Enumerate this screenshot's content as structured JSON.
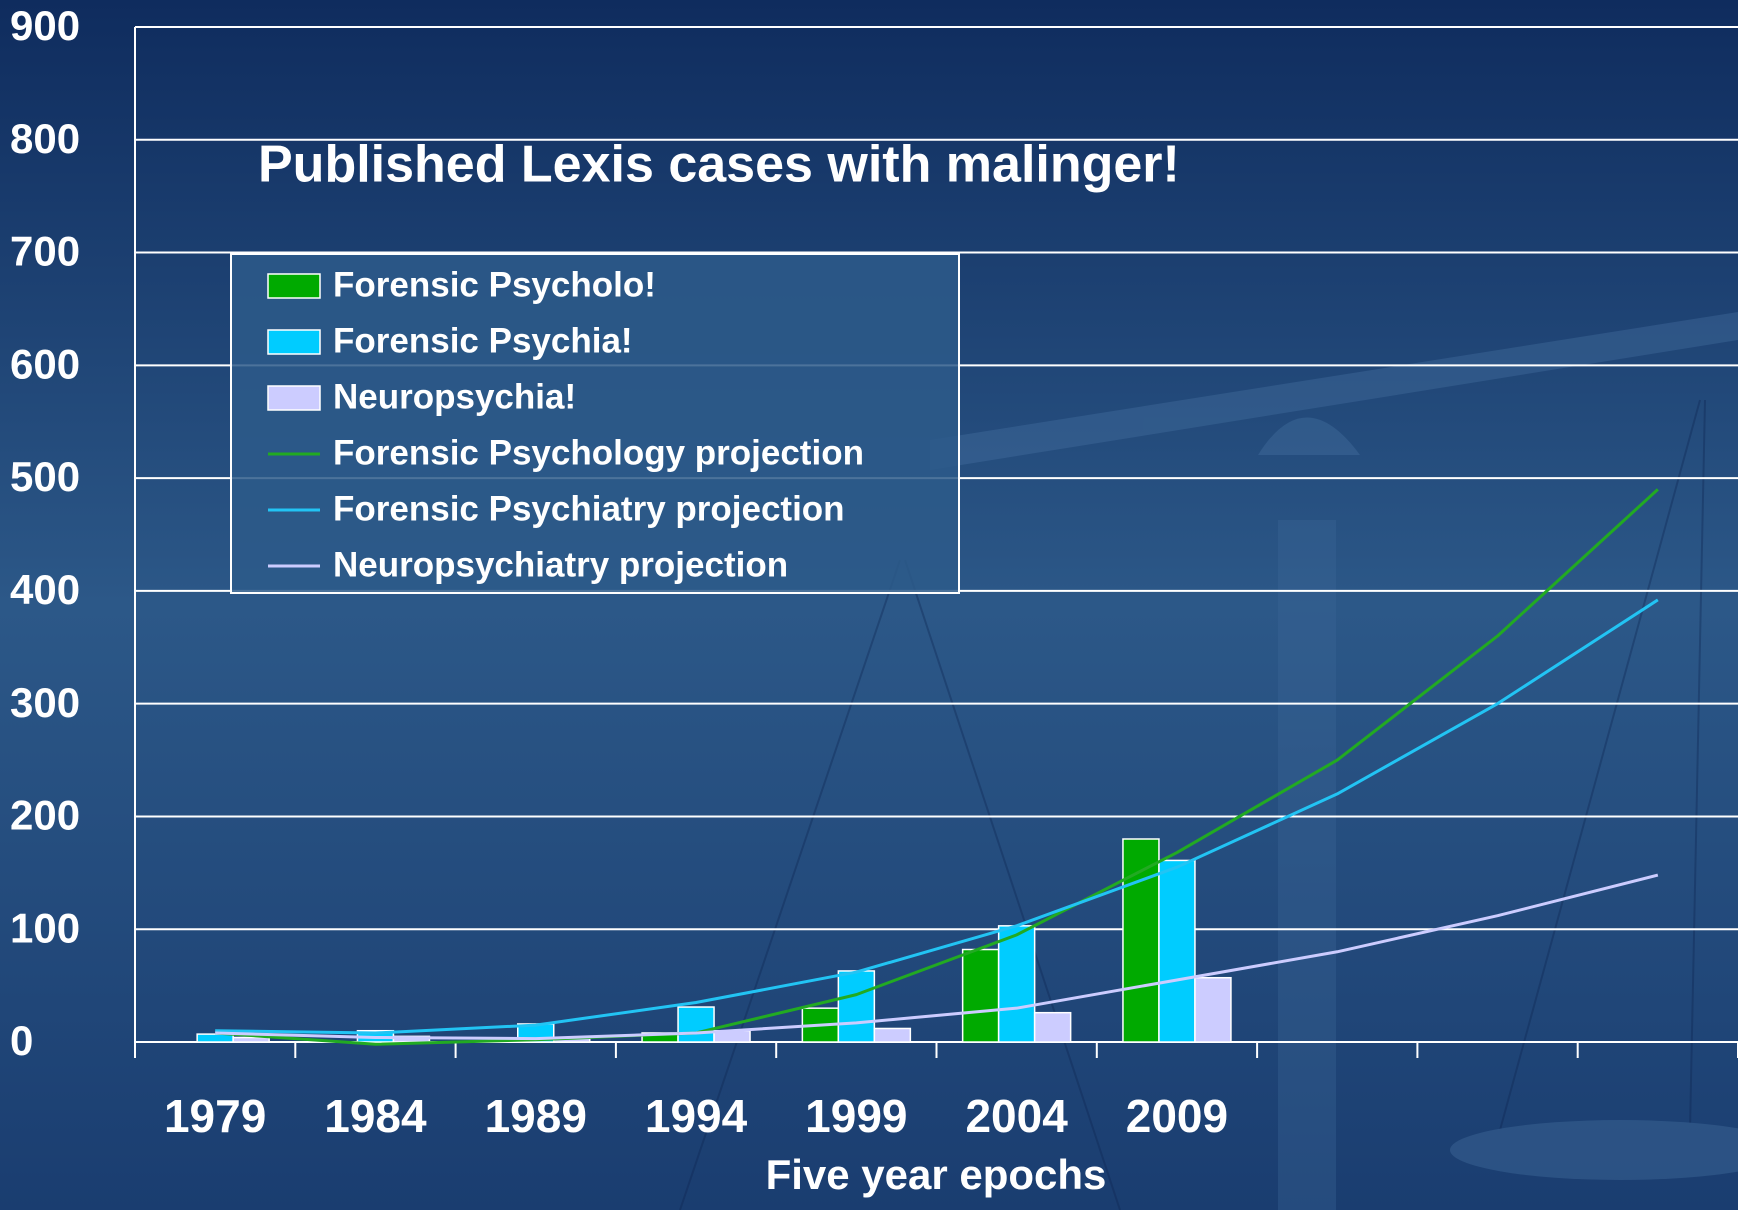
{
  "chart_data": {
    "type": "bar",
    "title": "Published Lexis cases with malinger!",
    "x_label": "Five year epochs",
    "categories": [
      "1979",
      "1984",
      "1989",
      "1994",
      "1999",
      "2004",
      "2009",
      null,
      null,
      null
    ],
    "series": [
      {
        "name": "Forensic Psycholo!",
        "type": "bar",
        "color": "#00aa00",
        "values": [
          0,
          0,
          0,
          8,
          30,
          82,
          180,
          null,
          null,
          null
        ]
      },
      {
        "name": "Forensic Psychia!",
        "type": "bar",
        "color": "#00ccff",
        "values": [
          7,
          10,
          16,
          31,
          63,
          103,
          161,
          null,
          null,
          null
        ]
      },
      {
        "name": "Neuropsychia!",
        "type": "bar",
        "color": "#ccccff",
        "values": [
          4,
          5,
          4,
          10,
          12,
          26,
          57,
          null,
          null,
          null
        ]
      },
      {
        "name": "Forensic Psychology projection",
        "type": "line",
        "color": "#22aa22",
        "values": [
          8,
          -2,
          2,
          8,
          42,
          95,
          168,
          250,
          360,
          490
        ]
      },
      {
        "name": "Forensic Psychiatry projection",
        "type": "line",
        "color": "#22c4f4",
        "values": [
          10,
          8,
          15,
          35,
          62,
          103,
          155,
          220,
          300,
          392
        ]
      },
      {
        "name": "Neuropsychiatry projection",
        "type": "line",
        "color": "#ccccff",
        "values": [
          8,
          4,
          3,
          8,
          17,
          30,
          55,
          80,
          112,
          148
        ]
      }
    ],
    "ylim": [
      0,
      900
    ],
    "yticks": [
      0,
      100,
      200,
      300,
      400,
      500,
      600,
      700,
      800,
      900
    ],
    "grid": true
  }
}
